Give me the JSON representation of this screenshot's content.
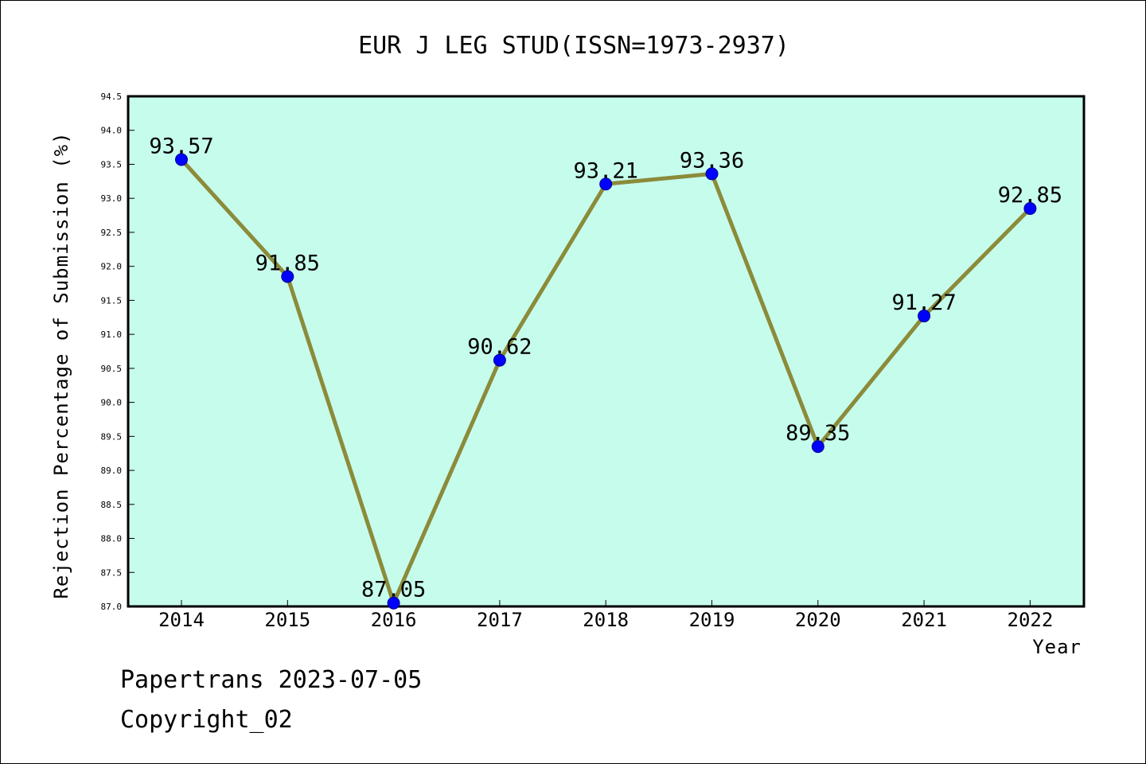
{
  "chart_data": {
    "type": "line",
    "title": "EUR J LEG STUD(ISSN=1973-2937)",
    "xlabel": "Year",
    "ylabel": "Rejection Percentage of Submission (%)",
    "categories": [
      "2014",
      "2015",
      "2016",
      "2017",
      "2018",
      "2019",
      "2020",
      "2021",
      "2022"
    ],
    "series": [
      {
        "values": [
          93.57,
          91.85,
          87.05,
          90.62,
          93.21,
          93.36,
          89.35,
          91.27,
          92.85
        ]
      }
    ],
    "data_labels": [
      "93.57",
      "91.85",
      "87.05",
      "90.62",
      "93.21",
      "93.36",
      "89.35",
      "91.27",
      "92.85"
    ],
    "ylim": [
      87.0,
      94.5
    ],
    "yticks": [
      "87.0",
      "87.5",
      "88.0",
      "88.5",
      "89.0",
      "89.5",
      "90.0",
      "90.5",
      "91.0",
      "91.5",
      "92.0",
      "92.5",
      "93.0",
      "93.5",
      "94.0",
      "94.5"
    ],
    "grid": false,
    "colors": {
      "plot_background": "#c6fcec",
      "line": "#8b8b3a",
      "marker": "#0000ff"
    }
  },
  "footer": {
    "line1": "Papertrans 2023-07-05",
    "line2": "Copyright_02"
  }
}
